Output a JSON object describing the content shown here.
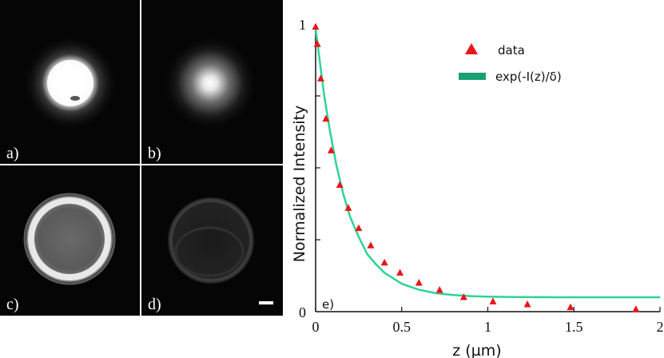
{
  "panels": [
    {
      "label": "a)",
      "description": "bright-disk"
    },
    {
      "label": "b)",
      "description": "dim-disk"
    },
    {
      "label": "c)",
      "description": "bright-ring"
    },
    {
      "label": "d)",
      "description": "faint-ring"
    }
  ],
  "colors": {
    "data_marker": "#e8161c",
    "fit_line": "#2ed494",
    "legend_fit_swatch": "#17a070",
    "axis": "#111111",
    "panel_bg": "#050505"
  },
  "chart_data": {
    "type": "scatter",
    "panel_label": "e)",
    "xlabel": "z (µm)",
    "ylabel": "Normalized Intensity",
    "xlim": [
      0,
      2
    ],
    "ylim": [
      0,
      1
    ],
    "x_ticks": [
      0,
      0.5,
      1,
      1.5,
      2
    ],
    "x_tick_labels": [
      "0",
      "0.5",
      "1",
      "1.5",
      "2"
    ],
    "y_tick_labels": [
      {
        "value": 0,
        "label": "0"
      },
      {
        "value": 1,
        "label": "1"
      }
    ],
    "y_minor_ticks": [
      0.25,
      0.5,
      0.75
    ],
    "series": [
      {
        "name": "data",
        "marker": "triangle",
        "x": [
          0.0,
          0.01,
          0.03,
          0.06,
          0.09,
          0.14,
          0.19,
          0.25,
          0.32,
          0.4,
          0.49,
          0.6,
          0.72,
          0.86,
          1.03,
          1.23,
          1.48,
          1.86
        ],
        "y": [
          0.99,
          0.93,
          0.81,
          0.67,
          0.56,
          0.44,
          0.36,
          0.29,
          0.23,
          0.17,
          0.135,
          0.1,
          0.075,
          0.05,
          0.035,
          0.025,
          0.015,
          0.008
        ]
      },
      {
        "name": "exp(-I(z)/δ)",
        "type": "line",
        "x": [
          0.0,
          0.02,
          0.05,
          0.08,
          0.12,
          0.16,
          0.2,
          0.25,
          0.3,
          0.35,
          0.4,
          0.5,
          0.6,
          0.7,
          0.8,
          0.9,
          1.0,
          1.2,
          1.4,
          1.6,
          1.8,
          2.0
        ],
        "y": [
          0.985,
          0.89,
          0.75,
          0.64,
          0.51,
          0.41,
          0.33,
          0.26,
          0.2,
          0.165,
          0.135,
          0.097,
          0.076,
          0.064,
          0.058,
          0.054,
          0.052,
          0.0505,
          0.05,
          0.05,
          0.05,
          0.05
        ]
      }
    ],
    "legend": [
      {
        "name": "data",
        "symbol": "triangle"
      },
      {
        "name": "exp(-I(z)/δ)",
        "symbol": "bar"
      }
    ]
  }
}
